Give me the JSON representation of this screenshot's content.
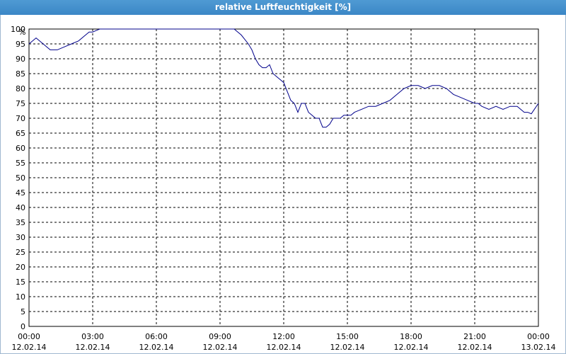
{
  "window": {
    "title": "relative Luftfeuchtigkeit [%]"
  },
  "colors": {
    "titlebar": "#3b87c6",
    "line": "#00008b",
    "grid": "#000000"
  },
  "chart_data": {
    "type": "line",
    "title": "relative Luftfeuchtigkeit [%]",
    "ylabel": "%",
    "xlabel": "",
    "ylim": [
      0,
      100
    ],
    "yticks": [
      0,
      5,
      10,
      15,
      20,
      25,
      30,
      35,
      40,
      45,
      50,
      55,
      60,
      65,
      70,
      75,
      80,
      85,
      90,
      95,
      100
    ],
    "xlim": [
      "12.02.14 00:00",
      "13.02.14 00:00"
    ],
    "xticks": [
      {
        "time": "00:00",
        "date": "12.02.14"
      },
      {
        "time": "03:00",
        "date": "12.02.14"
      },
      {
        "time": "06:00",
        "date": "12.02.14"
      },
      {
        "time": "09:00",
        "date": "12.02.14"
      },
      {
        "time": "12:00",
        "date": "12.02.14"
      },
      {
        "time": "15:00",
        "date": "12.02.14"
      },
      {
        "time": "18:00",
        "date": "12.02.14"
      },
      {
        "time": "21:00",
        "date": "12.02.14"
      },
      {
        "time": "00:00",
        "date": "13.02.14"
      }
    ],
    "grid": true,
    "series": [
      {
        "x": [
          "00:00",
          "00:20",
          "00:40",
          "01:00",
          "01:20",
          "01:40",
          "02:00",
          "02:20",
          "02:40",
          "02:50",
          "03:00",
          "03:10",
          "03:20",
          "04:00",
          "06:00",
          "08:00",
          "09:00",
          "09:40",
          "10:00",
          "10:20",
          "10:30",
          "10:40",
          "10:50",
          "11:00",
          "11:10",
          "11:20",
          "11:30",
          "11:40",
          "11:50",
          "12:00",
          "12:10",
          "12:20",
          "12:30",
          "12:40",
          "12:50",
          "13:00",
          "13:10",
          "13:20",
          "13:30",
          "13:40",
          "13:50",
          "14:00",
          "14:10",
          "14:20",
          "14:30",
          "14:40",
          "14:50",
          "15:00",
          "15:10",
          "15:20",
          "15:40",
          "16:00",
          "16:20",
          "16:40",
          "17:00",
          "17:20",
          "17:40",
          "18:00",
          "18:20",
          "18:40",
          "19:00",
          "19:20",
          "19:40",
          "20:00",
          "20:20",
          "20:40",
          "21:00",
          "21:10",
          "21:20",
          "21:40",
          "22:00",
          "22:20",
          "22:40",
          "23:00",
          "23:20",
          "23:30",
          "23:40",
          "24:00"
        ],
        "y": [
          95,
          97,
          95,
          93,
          93,
          94,
          95,
          96,
          98,
          99,
          99,
          99.5,
          100,
          100,
          100,
          100,
          100,
          100,
          98,
          95,
          93,
          90,
          88,
          87,
          87,
          88,
          85,
          84,
          83,
          82,
          79,
          76,
          75,
          72,
          75,
          75,
          72,
          71,
          70,
          70,
          67,
          67,
          68,
          70,
          70,
          70,
          71,
          71,
          71,
          72,
          73,
          74,
          74,
          75,
          76,
          78,
          80,
          81,
          81,
          80,
          81,
          81,
          80,
          78,
          77,
          76,
          75,
          75,
          74,
          73,
          74,
          73,
          74,
          74,
          72,
          72,
          71.5,
          75
        ]
      }
    ]
  }
}
